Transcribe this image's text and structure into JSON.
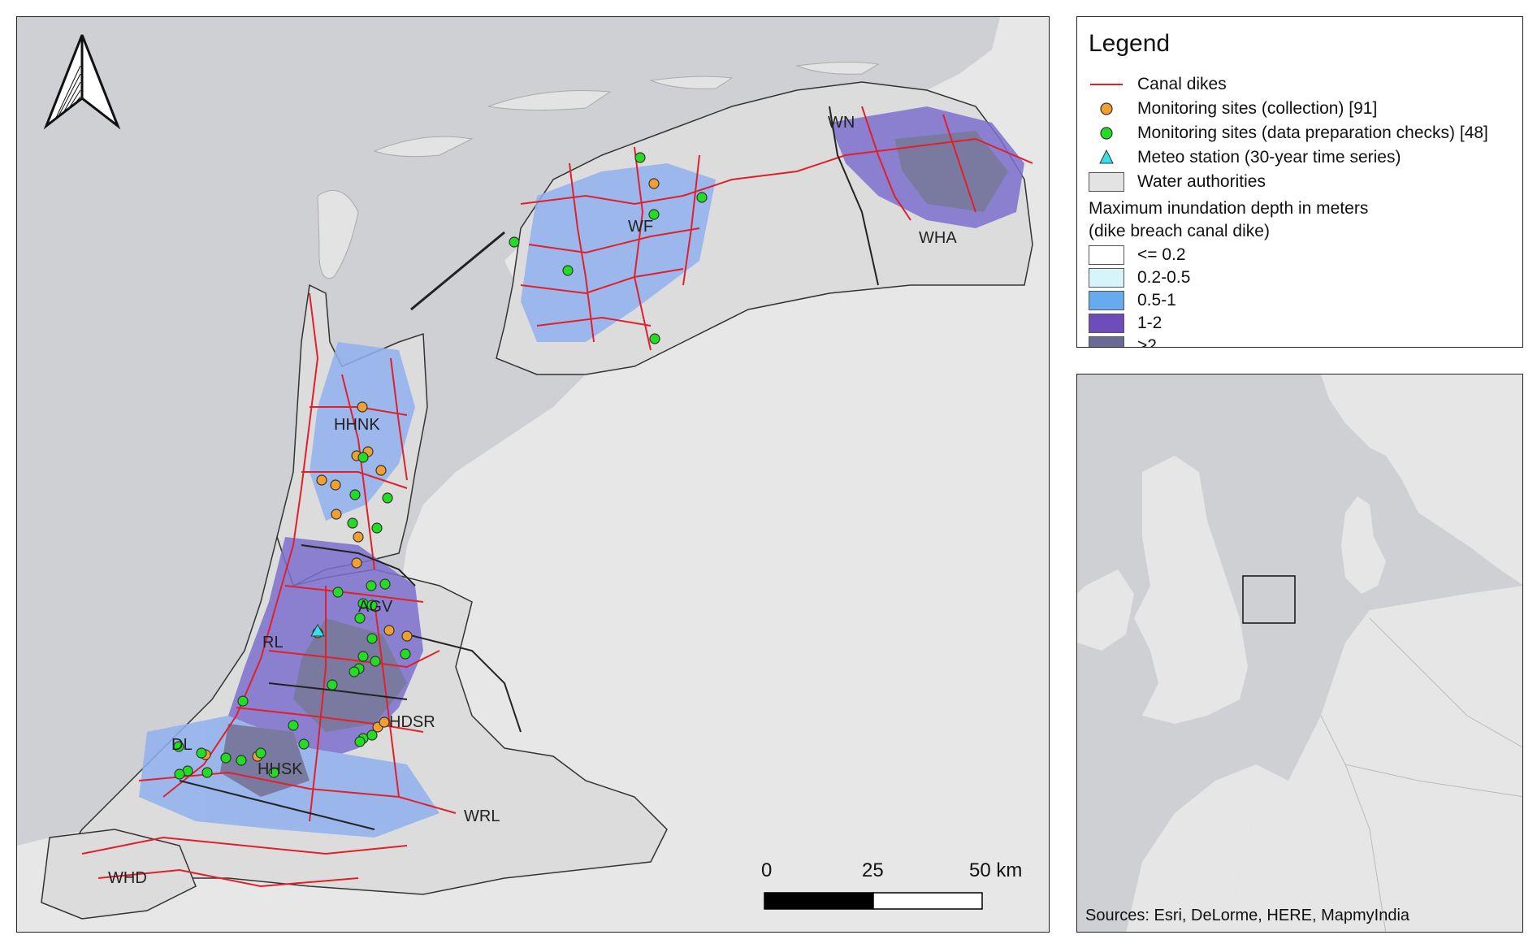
{
  "legend": {
    "title": "Legend",
    "items": [
      {
        "label": "Canal dikes",
        "symbol": "line",
        "color": "#e0202a"
      },
      {
        "label": "Monitoring sites (collection) [91]",
        "symbol": "circle",
        "color": "#f0a030"
      },
      {
        "label": "Monitoring sites (data preparation checks) [48]",
        "symbol": "circle",
        "color": "#22dd22"
      },
      {
        "label": "Meteo station (30-year time series)",
        "symbol": "triangle",
        "color": "#33e0e8"
      },
      {
        "label": "Water authorities",
        "symbol": "box",
        "color": "#e3e3e3"
      }
    ],
    "depth_heading_1": "Maximum inundation depth in meters",
    "depth_heading_2": "(dike breach canal dike)",
    "depth_classes": [
      {
        "label": "<= 0.2",
        "color": "#ffffff"
      },
      {
        "label": "0.2-0.5",
        "color": "#d8f4fb"
      },
      {
        "label": "0.5-1",
        "color": "#66aaf0"
      },
      {
        "label": "1-2",
        "color": "#6e4dbb"
      },
      {
        "label": ">2",
        "color": "#6a6a96"
      }
    ]
  },
  "map_labels": {
    "wf": "WF",
    "wn": "WN",
    "wha": "WHA",
    "hhnk": "HHNK",
    "agv": "AGV",
    "rl": "RL",
    "hdsr": "HDSR",
    "dl": "DL",
    "hhsk": "HHSK",
    "wrl": "WRL",
    "whd": "WHD"
  },
  "scale_bar": {
    "label_0": "0",
    "label_mid": "25",
    "label_end": "50 km"
  },
  "overview": {
    "sources": "Sources: Esri, DeLorme, HERE, MapmyIndia"
  },
  "colors": {
    "sea": "#cfd0d3",
    "land": "#e6e6e6",
    "authority": "#dedede",
    "dike": "#e0202a",
    "inundation_light": "#8fb0ee",
    "inundation_mid": "#7d70cf",
    "inundation_deep": "#6a6a96"
  },
  "icons": {
    "north_arrow": "north-arrow-icon"
  }
}
